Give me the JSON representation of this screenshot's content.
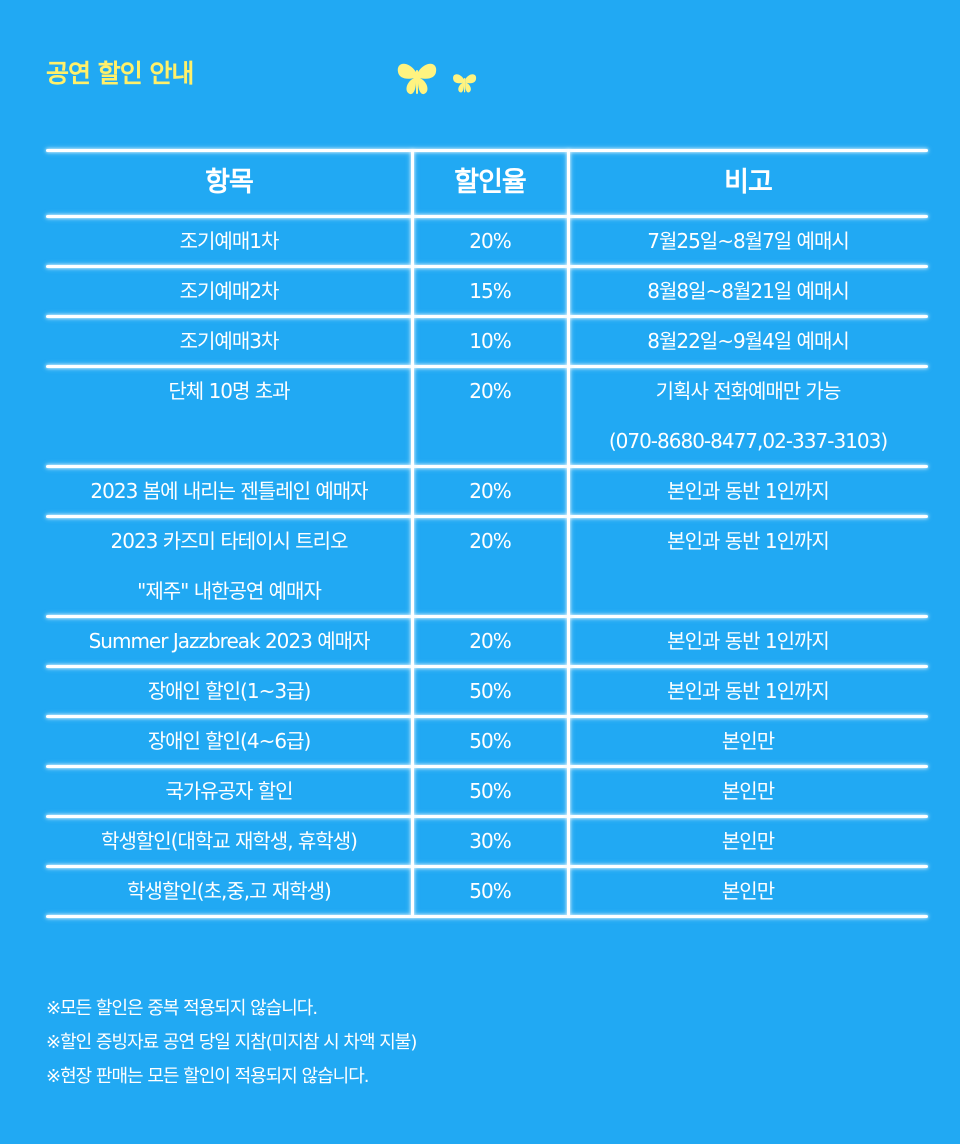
{
  "title": "공연 할인 안내",
  "icons": [
    "butterfly-icon",
    "butterfly-icon"
  ],
  "colors": {
    "background": "#21a9f3",
    "title": "#fff06a",
    "butterfly": "#fff380",
    "line": "#ffffff"
  },
  "table": {
    "headers": [
      "항목",
      "할인율",
      "비고"
    ],
    "rows": [
      {
        "item": [
          "조기예매1차"
        ],
        "rate": "20%",
        "note": [
          "7월25일~8월7일 예매시"
        ]
      },
      {
        "item": [
          "조기예매2차"
        ],
        "rate": "15%",
        "note": [
          "8월8일~8월21일 예매시"
        ]
      },
      {
        "item": [
          "조기예매3차"
        ],
        "rate": "10%",
        "note": [
          "8월22일~9월4일 예매시"
        ]
      },
      {
        "item": [
          "단체 10명 초과"
        ],
        "rate": "20%",
        "note": [
          "기획사 전화예매만 가능",
          "(070-8680-8477,02-337-3103)"
        ]
      },
      {
        "item": [
          "2023 봄에 내리는 젠틀레인 예매자"
        ],
        "rate": "20%",
        "note": [
          "본인과 동반 1인까지"
        ]
      },
      {
        "item": [
          "2023 카즈미 타테이시 트리오",
          "\"제주\" 내한공연 예매자"
        ],
        "rate": "20%",
        "note": [
          "본인과 동반 1인까지"
        ]
      },
      {
        "item": [
          "Summer Jazzbreak 2023 예매자"
        ],
        "rate": "20%",
        "note": [
          "본인과 동반 1인까지"
        ]
      },
      {
        "item": [
          "장애인 할인(1~3급)"
        ],
        "rate": "50%",
        "note": [
          "본인과 동반 1인까지"
        ]
      },
      {
        "item": [
          "장애인 할인(4~6급)"
        ],
        "rate": "50%",
        "note": [
          "본인만"
        ]
      },
      {
        "item": [
          "국가유공자 할인"
        ],
        "rate": "50%",
        "note": [
          "본인만"
        ]
      },
      {
        "item": [
          "학생할인(대학교 재학생, 휴학생)"
        ],
        "rate": "30%",
        "note": [
          "본인만"
        ]
      },
      {
        "item": [
          "학생할인(초,중,고 재학생)"
        ],
        "rate": "50%",
        "note": [
          "본인만"
        ]
      }
    ]
  },
  "notes": [
    "※모든 할인은 중복 적용되지 않습니다.",
    "※할인 증빙자료 공연 당일 지참(미지참 시 차액 지불)",
    "※현장 판매는 모든 할인이 적용되지 않습니다."
  ]
}
